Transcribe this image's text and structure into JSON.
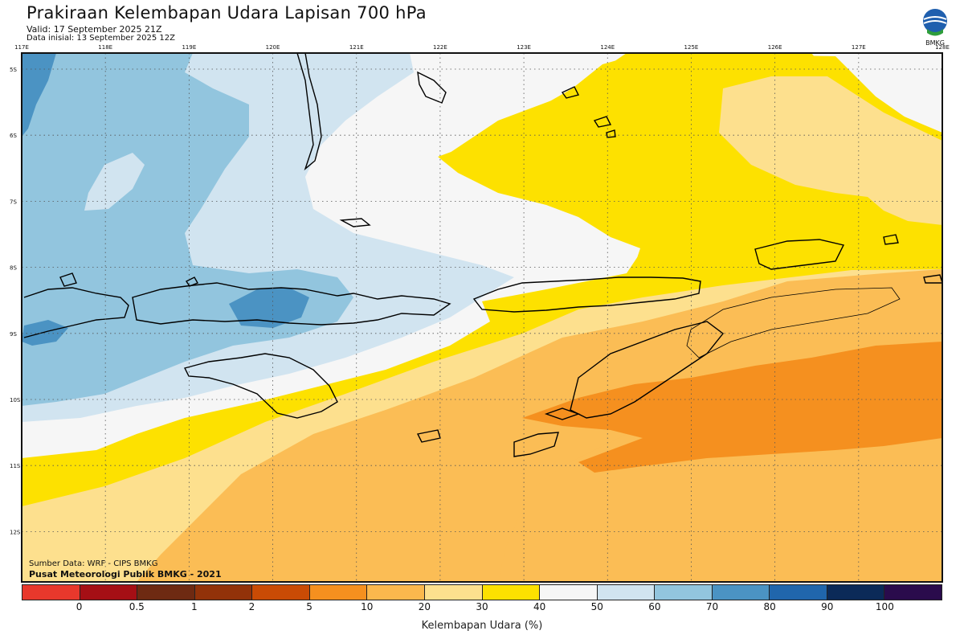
{
  "header": {
    "title": "Prakiraan Kelembapan Udara Lapisan 700 hPa",
    "valid": "Valid: 17 September 2025 21Z",
    "init": "Data inisial: 13 September 2025 12Z"
  },
  "logo": {
    "icon": "bmkg-logo-icon",
    "text": "BMKG"
  },
  "axes": {
    "lon_labels": [
      "117E",
      "118E",
      "119E",
      "120E",
      "121E",
      "122E",
      "123E",
      "124E",
      "125E",
      "126E",
      "127E",
      "128E"
    ],
    "lat_labels": [
      "5S",
      "6S",
      "7S",
      "8S",
      "9S",
      "10S",
      "11S",
      "12S"
    ]
  },
  "credits": {
    "source": "Sumber Data: WRF - CIPS BMKG",
    "org": "Pusat Meteorologi Publik BMKG - 2021"
  },
  "colorbar": {
    "title": "Kelembapan Udara (%)",
    "colors": [
      "#e8382c",
      "#a50f15",
      "#6e2a12",
      "#923209",
      "#c94b05",
      "#f5901f",
      "#fbb84d",
      "#fde08e",
      "#fde100",
      "#f6f6f6",
      "#d1e4f0",
      "#92c5de",
      "#4b93c3",
      "#2066ac",
      "#0b2a58",
      "#2a0b4c"
    ],
    "labels": [
      "0",
      "0.5",
      "1",
      "2",
      "5",
      "10",
      "20",
      "30",
      "40",
      "50",
      "60",
      "70",
      "80",
      "90",
      "100"
    ]
  },
  "map_colors": {
    "h80": "#4b93c3",
    "h70": "#92c5de",
    "h60": "#d1e4f0",
    "h50": "#f6f6f6",
    "h40": "#fde100",
    "h30": "#fde08e",
    "h20": "#fbbd55",
    "h10": "#f5901f"
  }
}
